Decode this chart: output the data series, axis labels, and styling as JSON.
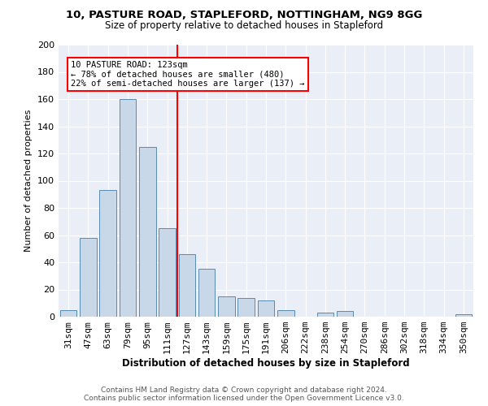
{
  "title1": "10, PASTURE ROAD, STAPLEFORD, NOTTINGHAM, NG9 8GG",
  "title2": "Size of property relative to detached houses in Stapleford",
  "xlabel": "Distribution of detached houses by size in Stapleford",
  "ylabel": "Number of detached properties",
  "footer1": "Contains HM Land Registry data © Crown copyright and database right 2024.",
  "footer2": "Contains public sector information licensed under the Open Government Licence v3.0.",
  "categories": [
    "31sqm",
    "47sqm",
    "63sqm",
    "79sqm",
    "95sqm",
    "111sqm",
    "127sqm",
    "143sqm",
    "159sqm",
    "175sqm",
    "191sqm",
    "206sqm",
    "222sqm",
    "238sqm",
    "254sqm",
    "270sqm",
    "286sqm",
    "302sqm",
    "318sqm",
    "334sqm",
    "350sqm"
  ],
  "values": [
    5,
    58,
    93,
    160,
    125,
    65,
    46,
    35,
    15,
    14,
    12,
    5,
    0,
    3,
    4,
    0,
    0,
    0,
    0,
    0,
    2
  ],
  "bar_color": "#c8d8e8",
  "bar_edge_color": "#5a8ab0",
  "annotation_text": "10 PASTURE ROAD: 123sqm\n← 78% of detached houses are smaller (480)\n22% of semi-detached houses are larger (137) →",
  "annotation_box_color": "white",
  "annotation_box_edge_color": "red",
  "vline_color": "red",
  "ylim": [
    0,
    200
  ],
  "yticks": [
    0,
    20,
    40,
    60,
    80,
    100,
    120,
    140,
    160,
    180,
    200
  ],
  "background_color": "#eaeff7",
  "grid_color": "white",
  "title1_fontsize": 9.5,
  "title2_fontsize": 8.5,
  "xlabel_fontsize": 8.5,
  "ylabel_fontsize": 8.0,
  "tick_fontsize": 8.0,
  "footer_fontsize": 6.5,
  "annot_fontsize": 7.5
}
